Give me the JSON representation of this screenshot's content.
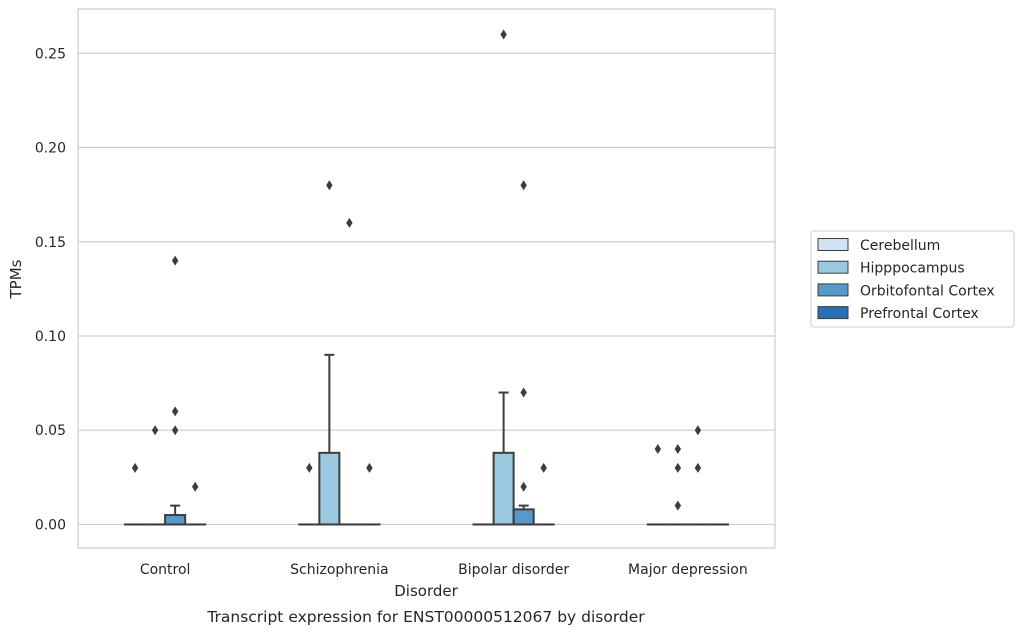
{
  "chart_data": {
    "type": "box",
    "caption": "Transcript expression for ENST00000512067 by disorder",
    "xlabel": "Disorder",
    "ylabel": "TPMs",
    "ylim": [
      -0.0125,
      0.2735
    ],
    "yticks": [
      "0.00",
      "0.05",
      "0.10",
      "0.15",
      "0.20",
      "0.25"
    ],
    "ytick_values": [
      0,
      0.05,
      0.1,
      0.15,
      0.2,
      0.25
    ],
    "grid": true,
    "legend_position": "right",
    "categories": [
      "Control",
      "Schizophrenia",
      "Bipolar disorder",
      "Major depression"
    ],
    "series": [
      {
        "name": "Cerebellum",
        "color": "#d1e2f2",
        "boxes": [
          {
            "q1": 0,
            "median": 0,
            "q3": 0,
            "whisker_low": 0,
            "whisker_high": 0,
            "outliers": [
              0.03
            ]
          },
          {
            "q1": 0,
            "median": 0,
            "q3": 0,
            "whisker_low": 0,
            "whisker_high": 0,
            "outliers": [
              0.03
            ]
          },
          {
            "q1": 0,
            "median": 0,
            "q3": 0,
            "whisker_low": 0,
            "whisker_high": 0,
            "outliers": []
          },
          {
            "q1": 0,
            "median": 0,
            "q3": 0,
            "whisker_low": 0,
            "whisker_high": 0,
            "outliers": [
              0.04
            ]
          }
        ]
      },
      {
        "name": "Hipppocampus",
        "color": "#9ac8e0",
        "boxes": [
          {
            "q1": 0,
            "median": 0,
            "q3": 0,
            "whisker_low": 0,
            "whisker_high": 0,
            "outliers": [
              0.05
            ]
          },
          {
            "q1": 0,
            "median": 0,
            "q3": 0.038,
            "whisker_low": 0,
            "whisker_high": 0.09,
            "outliers": [
              0.18
            ]
          },
          {
            "q1": 0,
            "median": 0,
            "q3": 0.038,
            "whisker_low": 0,
            "whisker_high": 0.07,
            "outliers": [
              0.26
            ]
          },
          {
            "q1": 0,
            "median": 0,
            "q3": 0,
            "whisker_low": 0,
            "whisker_high": 0,
            "outliers": [
              0.04,
              0.03,
              0.01
            ]
          }
        ]
      },
      {
        "name": "Orbitofontal Cortex",
        "color": "#5799c7",
        "boxes": [
          {
            "q1": 0,
            "median": 0,
            "q3": 0.005,
            "whisker_low": 0,
            "whisker_high": 0.01,
            "outliers": [
              0.14,
              0.06,
              0.05
            ]
          },
          {
            "q1": 0,
            "median": 0,
            "q3": 0,
            "whisker_low": 0,
            "whisker_high": 0,
            "outliers": [
              0.16
            ]
          },
          {
            "q1": 0,
            "median": 0,
            "q3": 0.008,
            "whisker_low": 0,
            "whisker_high": 0.01,
            "outliers": [
              0.18,
              0.07,
              0.02
            ]
          },
          {
            "q1": 0,
            "median": 0,
            "q3": 0,
            "whisker_low": 0,
            "whisker_high": 0,
            "outliers": [
              0.05,
              0.03
            ]
          }
        ]
      },
      {
        "name": "Prefrontal Cortex",
        "color": "#2a6fb0",
        "boxes": [
          {
            "q1": 0,
            "median": 0,
            "q3": 0,
            "whisker_low": 0,
            "whisker_high": 0,
            "outliers": [
              0.02
            ]
          },
          {
            "q1": 0,
            "median": 0,
            "q3": 0,
            "whisker_low": 0,
            "whisker_high": 0,
            "outliers": [
              0.03
            ]
          },
          {
            "q1": 0,
            "median": 0,
            "q3": 0,
            "whisker_low": 0,
            "whisker_high": 0,
            "outliers": [
              0.03
            ]
          },
          {
            "q1": 0,
            "median": 0,
            "q3": 0,
            "whisker_low": 0,
            "whisker_high": 0,
            "outliers": []
          }
        ]
      }
    ]
  }
}
